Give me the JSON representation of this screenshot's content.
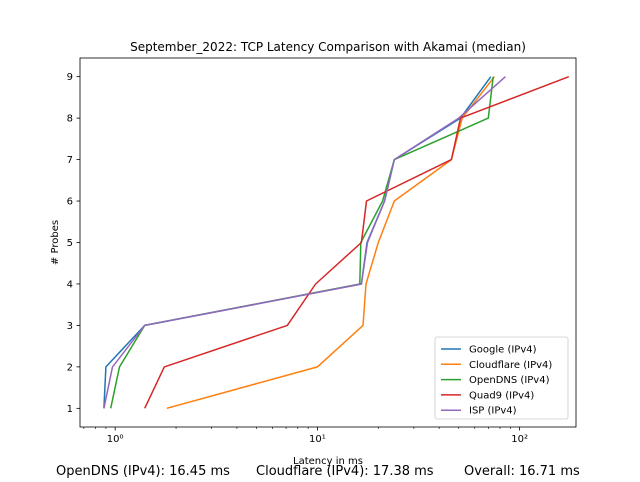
{
  "chart_data": {
    "type": "line",
    "title": "September_2022: TCP Latency Comparison with Akamai (median)",
    "xlabel": "Latency in ms",
    "ylabel": "# Probes",
    "xscale": "log",
    "xlim": [
      0.67,
      190
    ],
    "ylim": [
      0.55,
      9.45
    ],
    "x_tick_labels": [
      "10⁰",
      "10¹",
      "10²"
    ],
    "x_ticks": [
      1,
      10,
      100
    ],
    "y_ticks": [
      1,
      2,
      3,
      4,
      5,
      6,
      7,
      8,
      9
    ],
    "grid": false,
    "legend_position": "lower-right",
    "series": [
      {
        "name": "Google (IPv4)",
        "color": "#1f77b4",
        "x": [
          0.88,
          0.9,
          1.4,
          16.5,
          17.6,
          21.5,
          24.0,
          51.0,
          72.0
        ],
        "y": [
          1,
          2,
          3,
          4,
          5,
          6,
          7,
          8,
          9
        ]
      },
      {
        "name": "Cloudflare (IPv4)",
        "color": "#ff7f0e",
        "x": [
          1.8,
          10.0,
          16.8,
          17.4,
          20.0,
          24.0,
          46.0,
          52.0,
          75.0
        ],
        "y": [
          1,
          2,
          3,
          4,
          5,
          6,
          7,
          8,
          9
        ]
      },
      {
        "name": "OpenDNS (IPv4)",
        "color": "#2ca02c",
        "x": [
          0.95,
          1.05,
          1.4,
          16.2,
          16.4,
          21.0,
          24.0,
          70.0,
          74.0
        ],
        "y": [
          1,
          2,
          3,
          4,
          5,
          6,
          7,
          8,
          9
        ]
      },
      {
        "name": "Quad9 (IPv4)",
        "color": "#d62728",
        "x": [
          1.4,
          1.75,
          7.1,
          9.8,
          16.5,
          17.5,
          46.0,
          51.0,
          175.0
        ],
        "y": [
          1,
          2,
          3,
          4,
          5,
          6,
          7,
          8,
          9
        ]
      },
      {
        "name": "ISP (IPv4)",
        "color": "#9467bd",
        "x": [
          0.88,
          0.97,
          1.4,
          16.5,
          17.7,
          21.5,
          24.0,
          50.0,
          85.0
        ],
        "y": [
          1,
          2,
          3,
          4,
          5,
          6,
          7,
          8,
          9
        ]
      }
    ]
  },
  "footer": {
    "opendns": "OpenDNS (IPv4): 16.45 ms",
    "cloudflare": "Cloudflare (IPv4): 17.38 ms",
    "overall": "Overall: 16.71 ms"
  }
}
